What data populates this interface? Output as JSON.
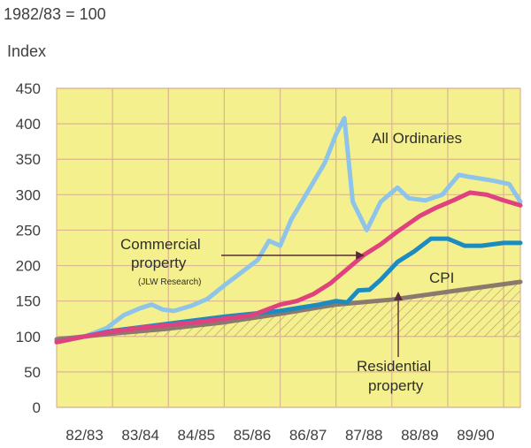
{
  "header": {
    "base_label": "1982/83 = 100",
    "axis_title": "Index"
  },
  "annotations": {
    "all_ordinaries": "All Ordinaries",
    "commercial_line1": "Commercial",
    "commercial_line2": "property",
    "commercial_source": "(JLW Research)",
    "cpi": "CPI",
    "residential_line1": "Residential",
    "residential_line2": "property"
  },
  "colors": {
    "plot_background": "#f4f08e",
    "grid": "#d9b78f",
    "all_ordinaries": "#8ec3ea",
    "commercial_property": "#e0427f",
    "residential_property": "#1c8cc0",
    "cpi": "#8a7a6e",
    "arrow": "#5a2a3a"
  },
  "chart_data": {
    "type": "line",
    "title": "",
    "xlabel": "",
    "ylabel": "Index",
    "ylim": [
      0,
      450
    ],
    "yticks": [
      0,
      50,
      100,
      150,
      200,
      250,
      300,
      350,
      400,
      450
    ],
    "categories": [
      "82/83",
      "83/84",
      "84/85",
      "85/86",
      "86/87",
      "87/88",
      "88/89",
      "89/90"
    ],
    "grid": true,
    "series": [
      {
        "name": "All Ordinaries",
        "x": [
          82.0,
          82.5,
          82.9,
          83.2,
          83.5,
          83.7,
          83.9,
          84.1,
          84.4,
          84.7,
          85.0,
          85.3,
          85.6,
          85.8,
          86.0,
          86.2,
          86.5,
          86.8,
          87.0,
          87.15,
          87.3,
          87.55,
          87.8,
          88.1,
          88.3,
          88.6,
          88.9,
          89.2,
          89.4,
          89.8,
          90.1,
          90.3
        ],
        "y": [
          94,
          100,
          112,
          130,
          140,
          145,
          138,
          136,
          143,
          153,
          172,
          190,
          208,
          235,
          228,
          265,
          305,
          345,
          385,
          408,
          290,
          250,
          290,
          310,
          295,
          292,
          300,
          328,
          325,
          320,
          315,
          290
        ]
      },
      {
        "name": "Commercial property",
        "x": [
          82.0,
          82.5,
          83.0,
          83.5,
          84.0,
          84.5,
          85.0,
          85.5,
          86.0,
          86.3,
          86.6,
          86.9,
          87.2,
          87.5,
          87.8,
          88.1,
          88.5,
          88.8,
          89.1,
          89.4,
          89.7,
          90.0,
          90.3
        ],
        "y": [
          92,
          100,
          107,
          112,
          116,
          120,
          125,
          130,
          145,
          150,
          160,
          175,
          195,
          215,
          230,
          248,
          270,
          282,
          292,
          303,
          300,
          292,
          285
        ]
      },
      {
        "name": "Residential property",
        "x": [
          82.0,
          83.0,
          84.0,
          85.0,
          85.5,
          86.0,
          86.3,
          86.7,
          87.0,
          87.2,
          87.4,
          87.6,
          87.8,
          88.1,
          88.4,
          88.7,
          89.0,
          89.3,
          89.6,
          90.0,
          90.3
        ],
        "y": [
          92,
          108,
          118,
          128,
          132,
          136,
          140,
          145,
          150,
          148,
          165,
          166,
          180,
          205,
          220,
          238,
          238,
          228,
          228,
          232,
          232
        ]
      },
      {
        "name": "CPI",
        "x": [
          82.0,
          83.0,
          84.0,
          85.0,
          86.0,
          87.0,
          88.0,
          89.0,
          90.3
        ],
        "y": [
          96,
          104,
          111,
          120,
          132,
          145,
          152,
          163,
          177
        ]
      }
    ]
  }
}
